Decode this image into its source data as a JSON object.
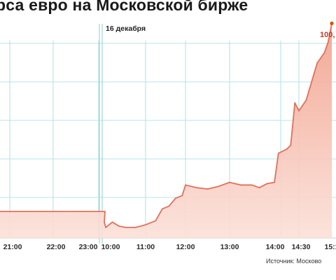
{
  "title": "рса евро на Московской бирже",
  "source": "Источник: Москово",
  "chart_data": {
    "type": "area",
    "title": "рса евро на Московской бирже",
    "date_annotation": "16 декабря",
    "peak_label": "100,",
    "color": "#e0705a",
    "fill": "#f4b7a6",
    "x_tick_labels": [
      "21:00",
      "22:00",
      "23:00",
      "10:00",
      "11:00",
      "12:00",
      "13:00",
      "14:00",
      "14:30",
      "15:1"
    ],
    "x": [
      "20:30",
      "21:00",
      "21:30",
      "22:00",
      "22:30",
      "23:00",
      "23:30",
      "09:55",
      "10:00",
      "10:10",
      "10:20",
      "10:30",
      "10:45",
      "11:00",
      "11:15",
      "11:25",
      "11:35",
      "11:45",
      "11:55",
      "12:00",
      "12:15",
      "12:30",
      "12:45",
      "13:00",
      "13:15",
      "13:30",
      "13:40",
      "13:50",
      "14:00",
      "14:05",
      "14:15",
      "14:20",
      "14:25",
      "14:30",
      "14:40",
      "14:55",
      "15:05",
      "15:10",
      "15:15"
    ],
    "values": [
      93.2,
      93.2,
      93.2,
      93.2,
      93.2,
      93.2,
      93.2,
      92.8,
      92.6,
      92.8,
      92.65,
      92.6,
      92.6,
      92.7,
      92.85,
      93.3,
      93.4,
      93.7,
      93.8,
      94.2,
      94.1,
      94.05,
      94.15,
      94.3,
      94.2,
      94.2,
      94.1,
      94.25,
      94.3,
      95.4,
      95.55,
      95.7,
      97.3,
      97.0,
      97.4,
      98.8,
      99.2,
      99.6,
      100.3
    ],
    "ylim": [
      92.2,
      100.6
    ]
  }
}
